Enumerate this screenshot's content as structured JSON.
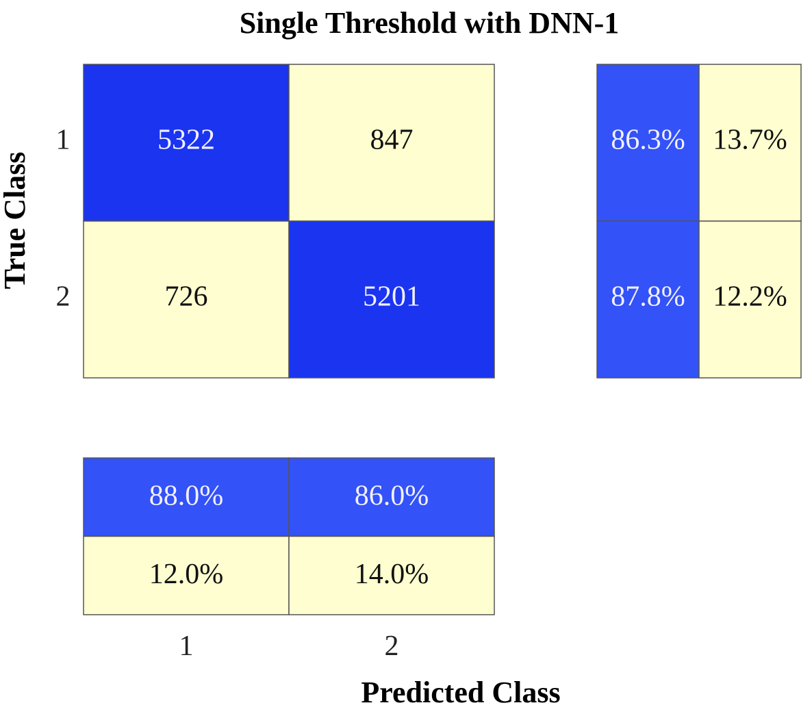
{
  "chart_data": {
    "type": "heatmap",
    "title": "Single Threshold with DNN-1",
    "xlabel": "Predicted Class",
    "ylabel": "True Class",
    "classes": [
      "1",
      "2"
    ],
    "matrix": [
      [
        5322,
        847
      ],
      [
        726,
        5201
      ]
    ],
    "row_summary": [
      [
        "86.3%",
        "13.7%"
      ],
      [
        "87.8%",
        "12.2%"
      ]
    ],
    "column_summary": [
      [
        "88.0%",
        "86.0%"
      ],
      [
        "12.0%",
        "14.0%"
      ]
    ],
    "grid": false
  },
  "colors": {
    "correct": "#1a34f0",
    "incorrect": "#fefed0",
    "summary_correct": "#3352f7",
    "summary_incorrect": "#fefed0",
    "correct_text": "#f0f0ff",
    "incorrect_text": "#111111",
    "border": "#555555"
  }
}
